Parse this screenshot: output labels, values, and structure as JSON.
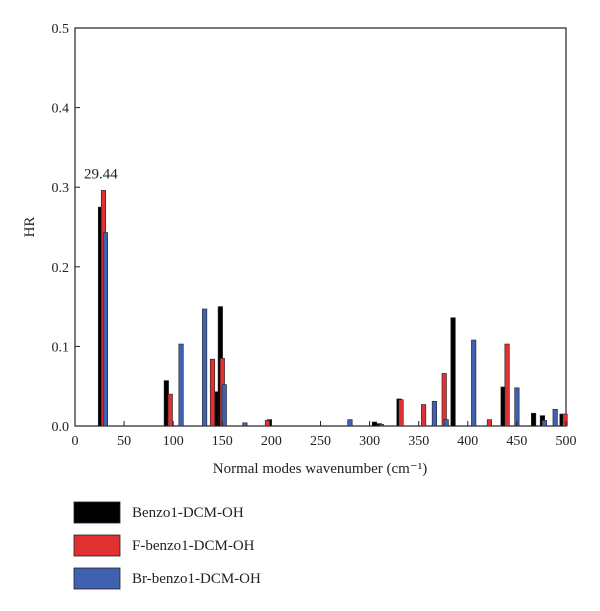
{
  "chart_data": {
    "type": "bar",
    "title": "",
    "xlabel": "Normal modes wavenumber (cm⁻¹)",
    "ylabel": "HR",
    "xlim": [
      0,
      500
    ],
    "ylim": [
      0,
      0.5
    ],
    "xticks": [
      0,
      50,
      100,
      150,
      200,
      250,
      300,
      350,
      400,
      450,
      500
    ],
    "yticks": [
      0.0,
      0.1,
      0.2,
      0.3,
      0.4,
      0.5
    ],
    "xtick_labels": [
      "0",
      "50",
      "100",
      "150",
      "200",
      "250",
      "300",
      "350",
      "400",
      "450",
      "500"
    ],
    "ytick_labels": [
      "0.0",
      "0.1",
      "0.2",
      "0.3",
      "0.4",
      "0.5"
    ],
    "grid": false,
    "legend_position": "bottom-left",
    "annotations": [
      {
        "text": "29.44",
        "x": 29.44,
        "y": 0.296
      }
    ],
    "series": [
      {
        "name": "Benzo1-DCM-OH",
        "color": "#000000",
        "points": [
          [
            26,
            0.275
          ],
          [
            93,
            0.057
          ],
          [
            145,
            0.043
          ],
          [
            148,
            0.15
          ],
          [
            198,
            0.008
          ],
          [
            305,
            0.005
          ],
          [
            310,
            0.003
          ],
          [
            330,
            0.034
          ],
          [
            385,
            0.136
          ],
          [
            436,
            0.049
          ],
          [
            467,
            0.016
          ],
          [
            476,
            0.013
          ],
          [
            496,
            0.015
          ]
        ]
      },
      {
        "name": "F-benzo1-DCM-OH",
        "color": "#e03030",
        "points": [
          [
            29,
            0.296
          ],
          [
            97,
            0.04
          ],
          [
            140,
            0.084
          ],
          [
            150,
            0.085
          ],
          [
            196,
            0.007
          ],
          [
            332,
            0.033
          ],
          [
            355,
            0.027
          ],
          [
            376,
            0.066
          ],
          [
            422,
            0.008
          ],
          [
            440,
            0.103
          ],
          [
            499,
            0.015
          ]
        ]
      },
      {
        "name": "Br-benzo1-DCM-OH",
        "color": "#4060b0",
        "points": [
          [
            31,
            0.243
          ],
          [
            108,
            0.103
          ],
          [
            132,
            0.147
          ],
          [
            152,
            0.052
          ],
          [
            173,
            0.004
          ],
          [
            280,
            0.008
          ],
          [
            312,
            0.002
          ],
          [
            366,
            0.031
          ],
          [
            378,
            0.008
          ],
          [
            406,
            0.108
          ],
          [
            450,
            0.048
          ],
          [
            478,
            0.007
          ],
          [
            489,
            0.021
          ]
        ]
      }
    ]
  }
}
